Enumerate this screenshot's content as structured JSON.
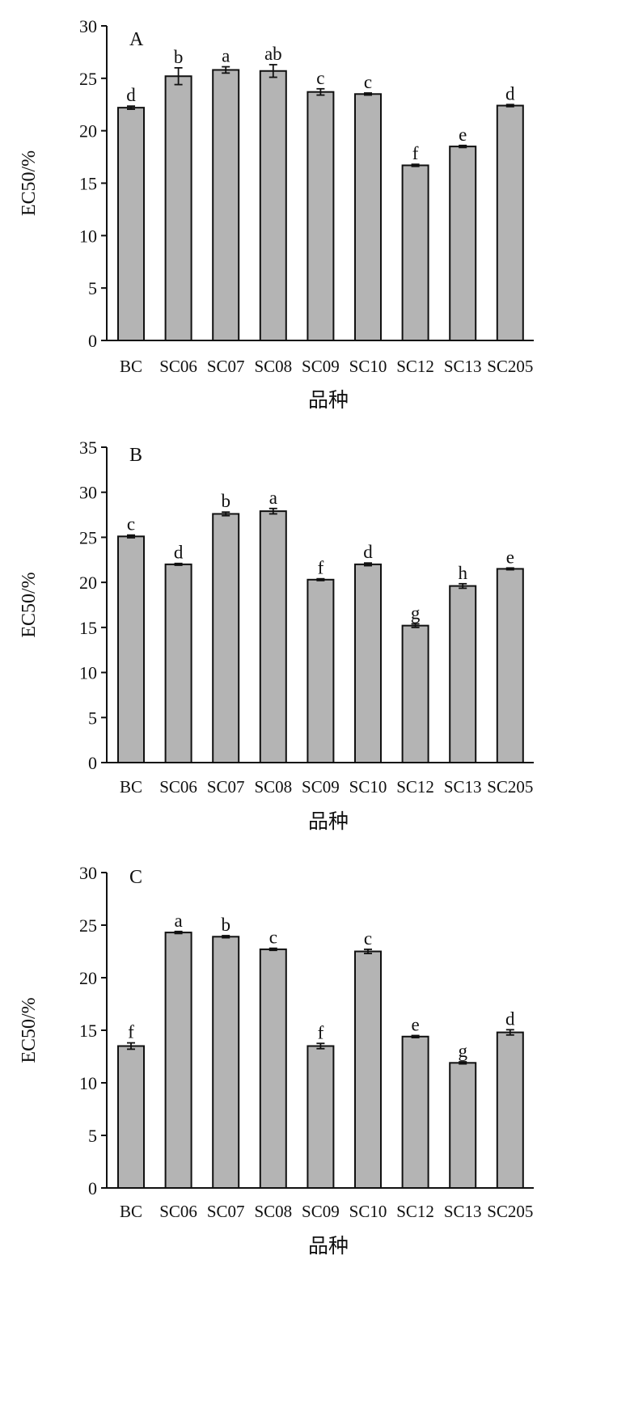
{
  "chart_data": [
    {
      "type": "bar",
      "panel_label": "A",
      "categories": [
        "BC",
        "SC06",
        "SC07",
        "SC08",
        "SC09",
        "SC10",
        "SC12",
        "SC13",
        "SC205"
      ],
      "values": [
        22.2,
        25.2,
        25.8,
        25.7,
        23.7,
        23.5,
        16.7,
        18.5,
        22.4
      ],
      "errors": [
        0.15,
        0.8,
        0.3,
        0.6,
        0.3,
        0.1,
        0.1,
        0.1,
        0.1
      ],
      "significance": [
        "d",
        "b",
        "a",
        "ab",
        "c",
        "c",
        "f",
        "e",
        "d"
      ],
      "xlabel": "品种",
      "ylabel": "EC50/%",
      "ylim": [
        0,
        30
      ],
      "yticks": [
        0,
        5,
        10,
        15,
        20,
        25,
        30
      ],
      "grid": false
    },
    {
      "type": "bar",
      "panel_label": "B",
      "categories": [
        "BC",
        "SC06",
        "SC07",
        "SC08",
        "SC09",
        "SC10",
        "SC12",
        "SC13",
        "SC205"
      ],
      "values": [
        25.1,
        22.0,
        27.6,
        27.9,
        20.3,
        22.0,
        15.2,
        19.6,
        21.5
      ],
      "errors": [
        0.15,
        0.1,
        0.2,
        0.3,
        0.1,
        0.15,
        0.2,
        0.25,
        0.1
      ],
      "significance": [
        "c",
        "d",
        "b",
        "a",
        "f",
        "d",
        "g",
        "h",
        "e"
      ],
      "xlabel": "品种",
      "ylabel": "EC50/%",
      "ylim": [
        0,
        35
      ],
      "yticks": [
        0,
        5,
        10,
        15,
        20,
        25,
        30,
        35
      ],
      "grid": false
    },
    {
      "type": "bar",
      "panel_label": "C",
      "categories": [
        "BC",
        "SC06",
        "SC07",
        "SC08",
        "SC09",
        "SC10",
        "SC12",
        "SC13",
        "SC205"
      ],
      "values": [
        13.5,
        24.3,
        23.9,
        22.7,
        13.5,
        22.5,
        14.4,
        11.9,
        14.8
      ],
      "errors": [
        0.3,
        0.1,
        0.1,
        0.1,
        0.25,
        0.2,
        0.1,
        0.1,
        0.25
      ],
      "significance": [
        "f",
        "a",
        "b",
        "c",
        "f",
        "c",
        "e",
        "g",
        "d"
      ],
      "xlabel": "品种",
      "ylabel": "EC50/%",
      "ylim": [
        0,
        30
      ],
      "yticks": [
        0,
        5,
        10,
        15,
        20,
        25,
        30
      ],
      "grid": false
    }
  ]
}
